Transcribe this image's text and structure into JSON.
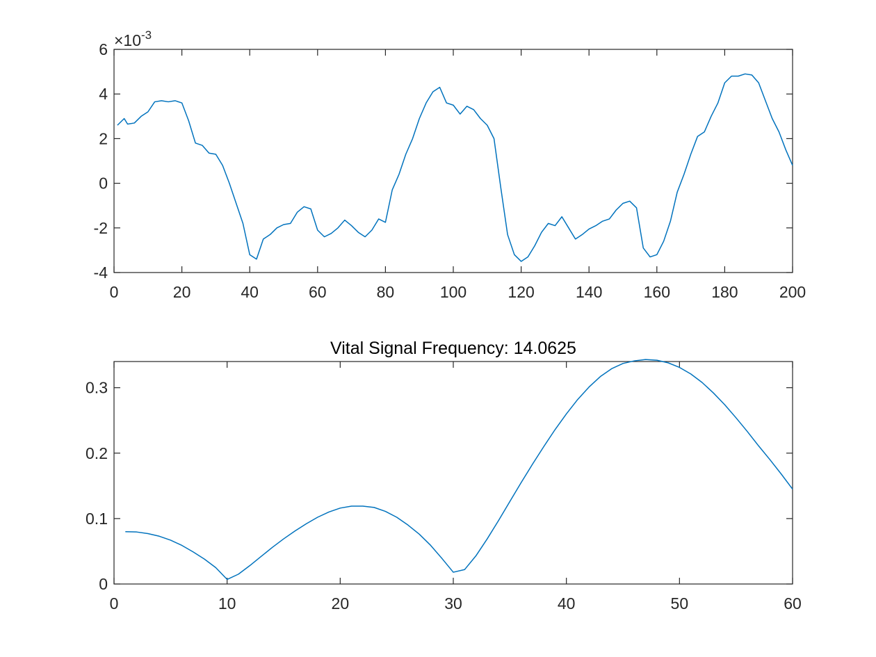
{
  "chart_data": [
    {
      "type": "line",
      "title": "",
      "xlabel": "",
      "ylabel": "",
      "xlim": [
        0,
        200
      ],
      "ylim": [
        -4,
        6
      ],
      "y_exponent": "×10",
      "y_exponent_power": "-3",
      "xticks": [
        0,
        20,
        40,
        60,
        80,
        100,
        120,
        140,
        160,
        180,
        200
      ],
      "yticks": [
        -4,
        -2,
        0,
        2,
        4,
        6
      ],
      "grid": false,
      "color": "#0072BD",
      "series": [
        {
          "x": [
            1,
            3,
            4,
            6,
            8,
            10,
            12,
            14,
            16,
            18,
            20,
            22,
            24,
            26,
            28,
            30,
            32,
            34,
            36,
            38,
            40,
            42,
            44,
            46,
            48,
            50,
            52,
            54,
            56,
            58,
            60,
            62,
            64,
            66,
            68,
            70,
            72,
            74,
            76,
            78,
            80,
            82,
            84,
            86,
            88,
            90,
            92,
            94,
            96,
            98,
            100,
            102,
            104,
            106,
            108,
            110,
            112,
            114,
            116,
            118,
            120,
            122,
            124,
            126,
            128,
            130,
            132,
            134,
            136,
            138,
            140,
            142,
            144,
            146,
            148,
            150,
            152,
            154,
            156,
            158,
            160,
            162,
            164,
            166,
            168,
            170,
            172,
            174,
            176,
            178,
            180,
            182,
            184,
            186,
            188,
            190,
            192,
            194,
            196,
            198,
            200
          ],
          "y": [
            2.6,
            2.9,
            2.65,
            2.7,
            3.0,
            3.2,
            3.65,
            3.7,
            3.65,
            3.7,
            3.6,
            2.8,
            1.8,
            1.7,
            1.35,
            1.3,
            0.8,
            0.0,
            -0.9,
            -1.8,
            -3.2,
            -3.4,
            -2.5,
            -2.3,
            -2.0,
            -1.85,
            -1.8,
            -1.3,
            -1.05,
            -1.15,
            -2.1,
            -2.4,
            -2.25,
            -2.0,
            -1.65,
            -1.9,
            -2.2,
            -2.4,
            -2.1,
            -1.6,
            -1.75,
            -0.3,
            0.4,
            1.3,
            2.0,
            2.9,
            3.6,
            4.1,
            4.3,
            3.6,
            3.5,
            3.1,
            3.45,
            3.3,
            2.9,
            2.6,
            2.0,
            -0.2,
            -2.3,
            -3.2,
            -3.5,
            -3.3,
            -2.8,
            -2.2,
            -1.8,
            -1.9,
            -1.5,
            -2.0,
            -2.5,
            -2.3,
            -2.05,
            -1.9,
            -1.7,
            -1.6,
            -1.2,
            -0.9,
            -0.8,
            -1.1,
            -2.9,
            -3.3,
            -3.2,
            -2.6,
            -1.7,
            -0.4,
            0.4,
            1.3,
            2.1,
            2.3,
            3.0,
            3.6,
            4.5,
            4.8,
            4.8,
            4.9,
            4.85,
            4.5,
            3.7,
            2.9,
            2.3,
            1.5,
            0.8
          ]
        }
      ]
    },
    {
      "type": "line",
      "title": "Vital Signal Frequency: 14.0625",
      "xlabel": "",
      "ylabel": "",
      "xlim": [
        0,
        60
      ],
      "ylim": [
        0,
        0.34
      ],
      "xticks": [
        0,
        10,
        20,
        30,
        40,
        50,
        60
      ],
      "yticks": [
        0,
        0.1,
        0.2,
        0.3
      ],
      "grid": false,
      "color": "#0072BD",
      "series": [
        {
          "x": [
            1,
            2,
            3,
            4,
            5,
            6,
            7,
            8,
            9,
            10,
            11,
            12,
            13,
            14,
            15,
            16,
            17,
            18,
            19,
            20,
            21,
            22,
            23,
            24,
            25,
            26,
            27,
            28,
            29,
            30,
            31,
            32,
            33,
            34,
            35,
            36,
            37,
            38,
            39,
            40,
            41,
            42,
            43,
            44,
            45,
            46,
            47,
            48,
            49,
            50,
            51,
            52,
            53,
            54,
            55,
            56,
            57,
            58,
            59,
            60
          ],
          "y": [
            0.08,
            0.0795,
            0.077,
            0.073,
            0.067,
            0.059,
            0.049,
            0.038,
            0.025,
            0.007,
            0.015,
            0.028,
            0.042,
            0.056,
            0.069,
            0.081,
            0.092,
            0.102,
            0.11,
            0.116,
            0.119,
            0.119,
            0.117,
            0.111,
            0.102,
            0.09,
            0.076,
            0.059,
            0.039,
            0.018,
            0.022,
            0.043,
            0.069,
            0.097,
            0.126,
            0.155,
            0.183,
            0.21,
            0.236,
            0.26,
            0.282,
            0.301,
            0.317,
            0.329,
            0.337,
            0.341,
            0.343,
            0.342,
            0.338,
            0.331,
            0.321,
            0.308,
            0.292,
            0.274,
            0.254,
            0.233,
            0.211,
            0.19,
            0.168,
            0.145
          ]
        }
      ]
    }
  ]
}
